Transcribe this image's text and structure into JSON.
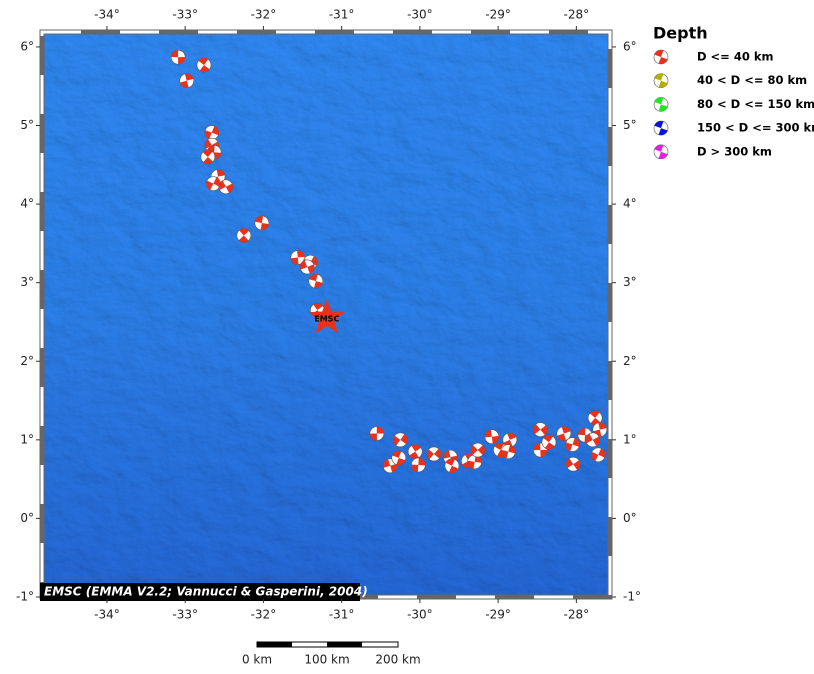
{
  "map": {
    "xlim": [
      -34.83,
      -27.57
    ],
    "ylim": [
      -1,
      6.19
    ],
    "lon_ticks": [
      {
        "value": -34,
        "label": "-34°"
      },
      {
        "value": -33,
        "label": "-33°"
      },
      {
        "value": -32,
        "label": "-32°"
      },
      {
        "value": -31,
        "label": "-31°"
      },
      {
        "value": -30,
        "label": "-30°"
      },
      {
        "value": -29,
        "label": "-29°"
      },
      {
        "value": -28,
        "label": "-28°"
      }
    ],
    "lat_ticks": [
      {
        "value": 6,
        "label": "6°"
      },
      {
        "value": 5,
        "label": "5°"
      },
      {
        "value": 4,
        "label": "4°"
      },
      {
        "value": 3,
        "label": "3°"
      },
      {
        "value": 2,
        "label": "2°"
      },
      {
        "value": 1,
        "label": "1°"
      },
      {
        "value": 0,
        "label": "0°"
      },
      {
        "value": -1,
        "label": "-1°"
      }
    ],
    "legend_title": "Depth",
    "legend": [
      {
        "label": "D <= 40 km",
        "color": "#e8321e"
      },
      {
        "label": "40 < D <= 80 km",
        "color": "#b5b000"
      },
      {
        "label": "80 < D <= 150 km",
        "color": "#1ee81e"
      },
      {
        "label": "150 < D <= 300 km",
        "color": "#0a14d8"
      },
      {
        "label": "D > 300 km",
        "color": "#e61ee6"
      }
    ],
    "epicenter": {
      "label": "EMSC",
      "lon": -31.19,
      "lat": 2.55,
      "color": "#e8321e"
    },
    "events": [
      {
        "lon": -33.09,
        "lat": 5.87
      },
      {
        "lon": -32.76,
        "lat": 5.77
      },
      {
        "lon": -32.98,
        "lat": 5.57
      },
      {
        "lon": -32.66,
        "lat": 4.91
      },
      {
        "lon": -32.66,
        "lat": 4.75
      },
      {
        "lon": -32.63,
        "lat": 4.66
      },
      {
        "lon": -32.71,
        "lat": 4.6
      },
      {
        "lon": -32.58,
        "lat": 4.35
      },
      {
        "lon": -32.64,
        "lat": 4.26
      },
      {
        "lon": -32.48,
        "lat": 4.22
      },
      {
        "lon": -32.02,
        "lat": 3.76
      },
      {
        "lon": -32.25,
        "lat": 3.6
      },
      {
        "lon": -31.56,
        "lat": 3.32
      },
      {
        "lon": -31.4,
        "lat": 3.26
      },
      {
        "lon": -31.44,
        "lat": 3.2
      },
      {
        "lon": -31.33,
        "lat": 3.02
      },
      {
        "lon": -31.31,
        "lat": 2.65
      },
      {
        "lon": -30.55,
        "lat": 1.08
      },
      {
        "lon": -30.25,
        "lat": 1.0
      },
      {
        "lon": -30.38,
        "lat": 0.67
      },
      {
        "lon": -30.27,
        "lat": 0.77
      },
      {
        "lon": -30.06,
        "lat": 0.85
      },
      {
        "lon": -30.02,
        "lat": 0.68
      },
      {
        "lon": -29.82,
        "lat": 0.82
      },
      {
        "lon": -29.61,
        "lat": 0.78
      },
      {
        "lon": -29.59,
        "lat": 0.67
      },
      {
        "lon": -29.38,
        "lat": 0.73
      },
      {
        "lon": -29.3,
        "lat": 0.72
      },
      {
        "lon": -29.26,
        "lat": 0.87
      },
      {
        "lon": -29.08,
        "lat": 1.04
      },
      {
        "lon": -28.97,
        "lat": 0.87
      },
      {
        "lon": -28.85,
        "lat": 1.0
      },
      {
        "lon": -28.87,
        "lat": 0.85
      },
      {
        "lon": -28.46,
        "lat": 1.13
      },
      {
        "lon": -28.46,
        "lat": 0.87
      },
      {
        "lon": -28.35,
        "lat": 0.97
      },
      {
        "lon": -28.16,
        "lat": 1.08
      },
      {
        "lon": -28.05,
        "lat": 0.94
      },
      {
        "lon": -28.04,
        "lat": 0.69
      },
      {
        "lon": -27.89,
        "lat": 1.06
      },
      {
        "lon": -27.76,
        "lat": 1.28
      },
      {
        "lon": -27.7,
        "lat": 1.13
      },
      {
        "lon": -27.72,
        "lat": 0.81
      },
      {
        "lon": -27.79,
        "lat": 1.0
      }
    ],
    "credit": "EMSC (EMMA V2.2; Vannucci & Gasperini, 2004)",
    "scale_labels": [
      "0 km",
      "100 km",
      "200 km"
    ]
  }
}
